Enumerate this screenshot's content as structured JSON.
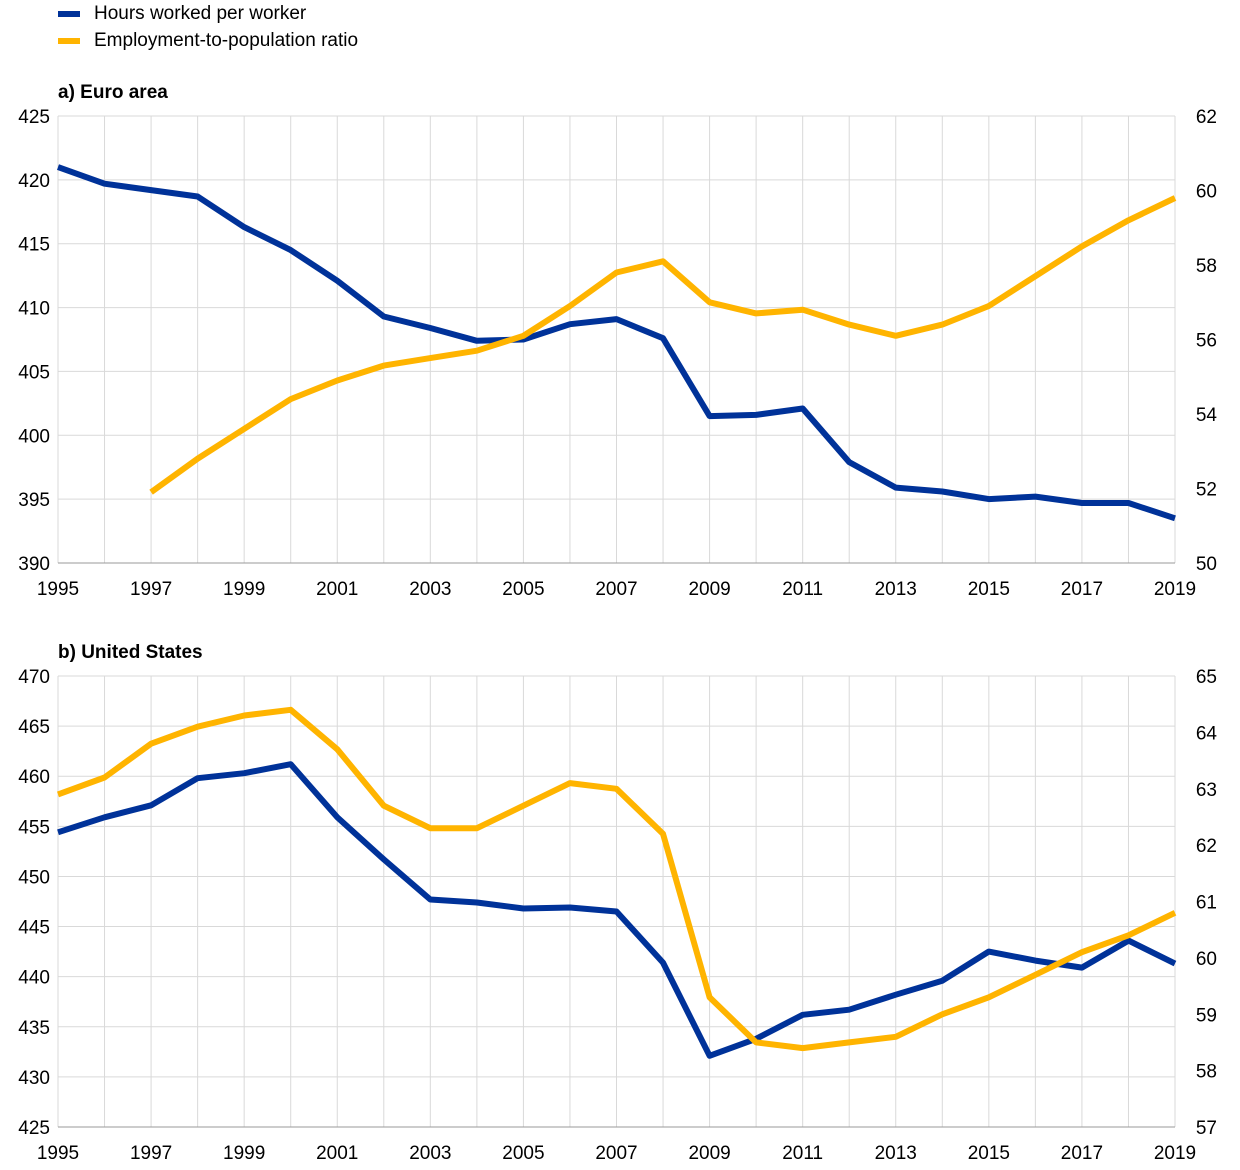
{
  "legend": {
    "items": [
      {
        "label": "Hours worked per worker",
        "color": "#003299"
      },
      {
        "label": "Employment-to-population ratio",
        "color": "#FFB400"
      }
    ]
  },
  "chart_data": [
    {
      "type": "line",
      "title": "a) Euro area",
      "x": [
        1995,
        1996,
        1997,
        1998,
        1999,
        2000,
        2001,
        2002,
        2003,
        2004,
        2005,
        2006,
        2007,
        2008,
        2009,
        2010,
        2011,
        2012,
        2013,
        2014,
        2015,
        2016,
        2017,
        2018,
        2019
      ],
      "x_tick_labels": [
        "1995",
        "1997",
        "1999",
        "2001",
        "2003",
        "2005",
        "2007",
        "2009",
        "2011",
        "2013",
        "2015",
        "2017",
        "2019"
      ],
      "y_left": {
        "range": [
          390,
          425
        ],
        "ticks": [
          390,
          395,
          400,
          405,
          410,
          415,
          420,
          425
        ]
      },
      "y_right": {
        "range": [
          50,
          62
        ],
        "ticks": [
          50,
          52,
          54,
          56,
          58,
          60,
          62
        ]
      },
      "grid": true,
      "series": [
        {
          "name": "Hours worked per worker",
          "axis": "left",
          "color": "#003299",
          "values": [
            421.0,
            419.7,
            419.2,
            418.7,
            416.3,
            414.5,
            412.1,
            409.3,
            408.4,
            407.4,
            407.5,
            408.7,
            409.1,
            407.6,
            401.5,
            401.6,
            402.1,
            397.9,
            395.9,
            395.6,
            395.0,
            395.2,
            394.7,
            394.7,
            393.5
          ]
        },
        {
          "name": "Employment-to-population ratio",
          "axis": "right",
          "color": "#FFB400",
          "values": [
            null,
            null,
            51.9,
            52.8,
            53.6,
            54.4,
            54.9,
            55.3,
            55.5,
            55.7,
            56.1,
            56.9,
            57.8,
            58.1,
            57.0,
            56.7,
            56.8,
            56.4,
            56.1,
            56.4,
            56.9,
            57.7,
            58.5,
            59.2,
            59.8
          ]
        }
      ]
    },
    {
      "type": "line",
      "title": "b) United States",
      "x": [
        1995,
        1996,
        1997,
        1998,
        1999,
        2000,
        2001,
        2002,
        2003,
        2004,
        2005,
        2006,
        2007,
        2008,
        2009,
        2010,
        2011,
        2012,
        2013,
        2014,
        2015,
        2016,
        2017,
        2018,
        2019
      ],
      "x_tick_labels": [
        "1995",
        "1997",
        "1999",
        "2001",
        "2003",
        "2005",
        "2007",
        "2009",
        "2011",
        "2013",
        "2015",
        "2017",
        "2019"
      ],
      "y_left": {
        "range": [
          425,
          470
        ],
        "ticks": [
          425,
          430,
          435,
          440,
          445,
          450,
          455,
          460,
          465,
          470
        ]
      },
      "y_right": {
        "range": [
          57,
          65
        ],
        "ticks": [
          57,
          58,
          59,
          60,
          61,
          62,
          63,
          64,
          65
        ]
      },
      "grid": true,
      "series": [
        {
          "name": "Hours worked per worker",
          "axis": "left",
          "color": "#003299",
          "values": [
            454.4,
            455.9,
            457.1,
            459.8,
            460.3,
            461.2,
            455.9,
            451.7,
            447.7,
            447.4,
            446.8,
            446.9,
            446.5,
            441.4,
            432.1,
            433.8,
            436.2,
            436.7,
            438.2,
            439.6,
            442.5,
            441.6,
            440.9,
            443.6,
            441.3
          ]
        },
        {
          "name": "Employment-to-population ratio",
          "axis": "right",
          "color": "#FFB400",
          "values": [
            62.9,
            63.2,
            63.8,
            64.1,
            64.3,
            64.4,
            63.7,
            62.7,
            62.3,
            62.3,
            62.7,
            63.1,
            63.0,
            62.2,
            59.3,
            58.5,
            58.4,
            58.5,
            58.6,
            59.0,
            59.3,
            59.7,
            60.1,
            60.4,
            60.8
          ]
        }
      ]
    }
  ]
}
